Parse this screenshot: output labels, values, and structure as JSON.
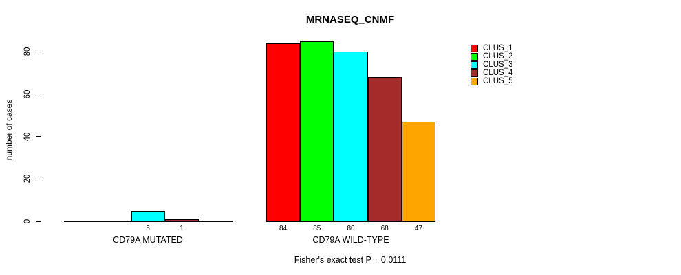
{
  "title": "MRNASEQ_CNMF",
  "y_axis": {
    "label": "number of cases",
    "ticks": [
      0,
      20,
      40,
      60,
      80
    ]
  },
  "legend": {
    "items": [
      {
        "label": "CLUS_1",
        "color": "#FF0000"
      },
      {
        "label": "CLUS_2",
        "color": "#00FF00"
      },
      {
        "label": "CLUS_3",
        "color": "#00FFFF"
      },
      {
        "label": "CLUS_4",
        "color": "#A52A2A"
      },
      {
        "label": "CLUS_5",
        "color": "#FFA500"
      }
    ]
  },
  "footer": "Fisher's exact test P = 0.0111",
  "chart_data": {
    "type": "bar",
    "title": "MRNASEQ_CNMF",
    "xlabel": "",
    "ylabel": "number of cases",
    "ylim": [
      0,
      85
    ],
    "yticks": [
      0,
      20,
      40,
      60,
      80
    ],
    "grid": false,
    "legend_position": "right",
    "series_names": [
      "CLUS_1",
      "CLUS_2",
      "CLUS_3",
      "CLUS_4",
      "CLUS_5"
    ],
    "series_colors": [
      "#FF0000",
      "#00FF00",
      "#00FFFF",
      "#A52A2A",
      "#FFA500"
    ],
    "groups": [
      {
        "label": "CD79A MUTATED",
        "values": [
          0,
          0,
          5,
          1,
          0
        ],
        "bar_labels": [
          "",
          "",
          "5",
          "1",
          ""
        ]
      },
      {
        "label": "CD79A WILD-TYPE",
        "values": [
          84,
          85,
          80,
          68,
          47
        ],
        "bar_labels": [
          "84",
          "85",
          "80",
          "68",
          "47"
        ]
      }
    ],
    "annotation": "Fisher's exact test P = 0.0111"
  }
}
